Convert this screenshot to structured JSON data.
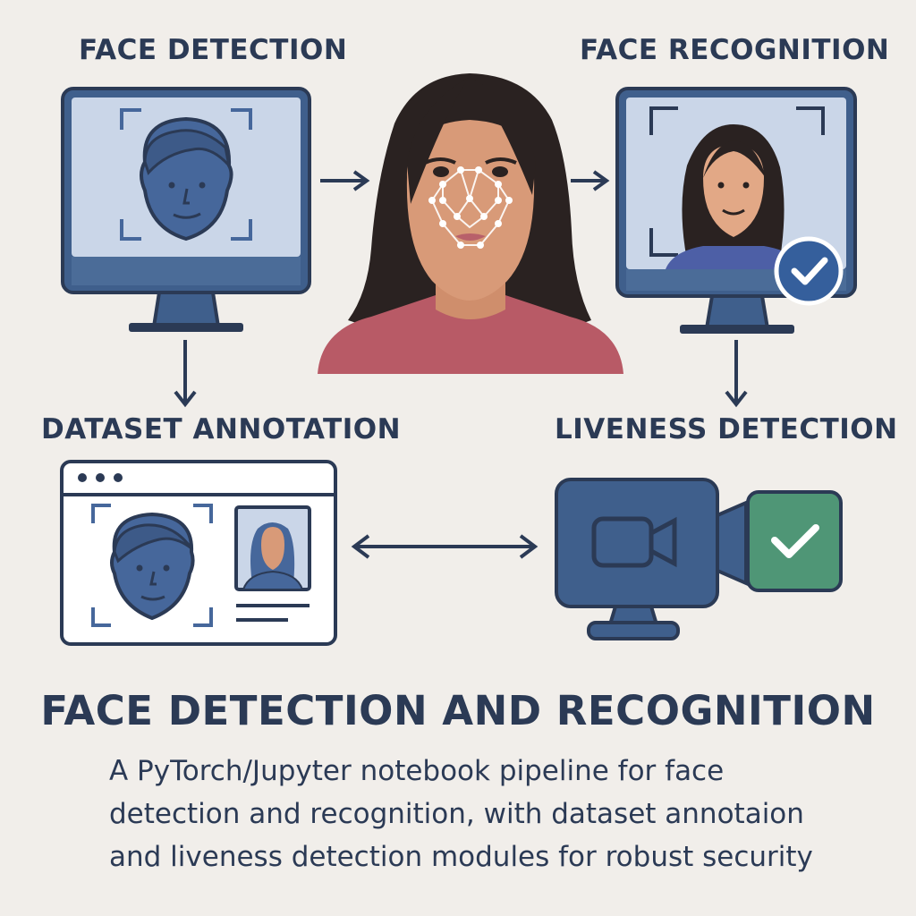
{
  "labels": {
    "face_detection": "FACE DETECTION",
    "face_recognition": "FACE RECOGNITION",
    "dataset_annotation": "DATASET ANNOTATION",
    "liveness_detection": "LIVENESS DETECTION"
  },
  "title": "FACE DETECTION AND RECOGNITION",
  "description": [
    "A PyTorch/Jupyter notebook pipeline for face",
    "detection and recognition, with dataset annotaion",
    "and liveness detection modules for robust security"
  ],
  "icons": {
    "detection_monitor": "monitor-icon",
    "recognition_monitor": "monitor-icon",
    "annotation_window": "browser-window-icon",
    "liveness_camera": "video-camera-icon",
    "check": "checkmark-icon",
    "person": "woman-portrait"
  },
  "colors": {
    "background": "#f1eeea",
    "navy": "#2b3a55",
    "face_blue": "#46679b",
    "screen_blue": "#cad6e8",
    "check_blue": "#355f9c",
    "check_green": "#4f9676",
    "skin": "#d89a78",
    "hair": "#2a2221",
    "shirt": "#b85a66"
  }
}
